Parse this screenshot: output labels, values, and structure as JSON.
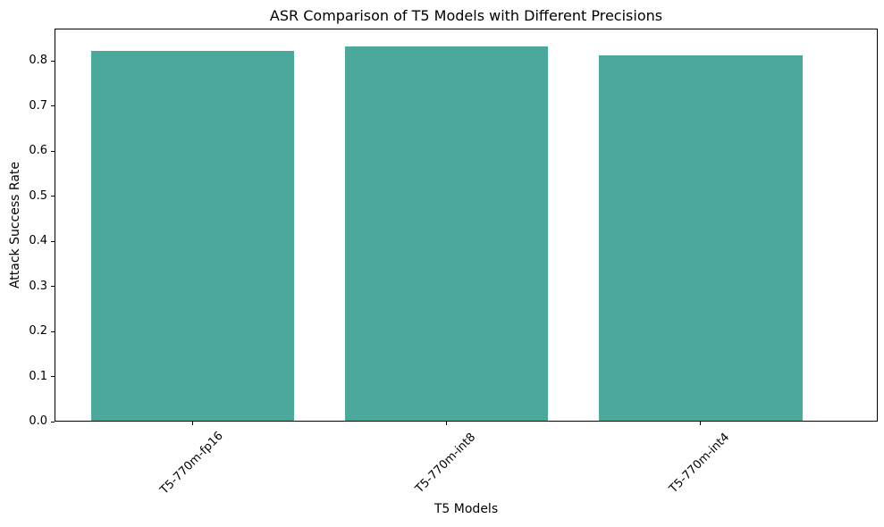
{
  "figure": {
    "background": "#ffffff",
    "text_color": "#000000",
    "spine_color": "#000000"
  },
  "chart_data": {
    "type": "bar",
    "title": "ASR Comparison of T5 Models with Different Precisions",
    "xlabel": "T5 Models",
    "ylabel": "Attack Success Rate",
    "categories": [
      "T5-770m-fp16",
      "T5-770m-int8",
      "T5-770m-int4"
    ],
    "values": [
      0.82,
      0.83,
      0.81
    ],
    "bar_color": "#4aa99a",
    "ylim": [
      0,
      0.872
    ],
    "yticks": [
      0.0,
      0.1,
      0.2,
      0.3,
      0.4,
      0.5,
      0.6,
      0.7,
      0.8
    ],
    "ytick_format_decimals": 1,
    "xtick_rotation_deg": 45,
    "grid": false,
    "legend": "none"
  }
}
